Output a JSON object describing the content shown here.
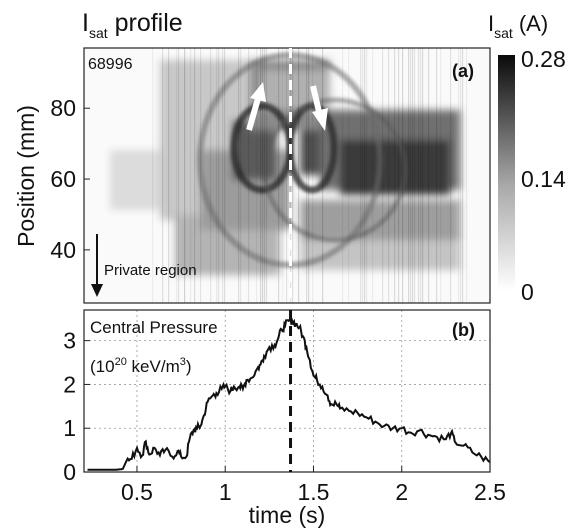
{
  "figure": {
    "title_main": "I",
    "title_sub": "sat",
    "title_rest": " profile"
  },
  "colorbar": {
    "label_main": "I",
    "label_sub": "sat",
    "label_unit": "(A)",
    "ticks": [
      "0.28",
      "0.14",
      "0"
    ],
    "colormap": "white-to-black grayscale"
  },
  "chart_data": [
    {
      "type": "heatmap",
      "panel": "(a)",
      "annotation_shot": "68996",
      "annotation_region": "Private region",
      "xlim": [
        0.2,
        2.5
      ],
      "ylim": [
        25,
        97
      ],
      "ylabel": "Position (mm)",
      "ytick_labels": [
        "40",
        "60",
        "80"
      ],
      "yticks": [
        40,
        60,
        80
      ],
      "zlim": [
        0,
        0.28
      ],
      "colorbar_ticks": [
        0,
        0.14,
        0.28
      ],
      "marker_time": 1.37,
      "arrows": [
        "up-left at ~1.2 s",
        "down-right at ~1.5 s"
      ]
    },
    {
      "type": "line",
      "panel": "(b)",
      "title": "Central Pressure",
      "unit_line": {
        "prefix": "(10",
        "exp": "20",
        "mid": " keV/m",
        "exp2": "3",
        "suffix": ")"
      },
      "xlabel": "time (s)",
      "xlim": [
        0.2,
        2.5
      ],
      "ylim": [
        0,
        3.7
      ],
      "xticks": [
        0.5,
        1,
        1.5,
        2,
        2.5
      ],
      "xtick_labels": [
        "0.5",
        "1",
        "1.5",
        "2",
        "2.5"
      ],
      "yticks": [
        0,
        1,
        2,
        3
      ],
      "ytick_labels": [
        "0",
        "1",
        "2",
        "3"
      ],
      "grid": true,
      "marker_time": 1.37,
      "x": [
        0.22,
        0.3,
        0.38,
        0.42,
        0.44,
        0.47,
        0.5,
        0.53,
        0.55,
        0.57,
        0.6,
        0.63,
        0.66,
        0.7,
        0.73,
        0.75,
        0.78,
        0.8,
        0.82,
        0.84,
        0.86,
        0.88,
        0.9,
        0.93,
        0.95,
        0.98,
        1.0,
        1.03,
        1.05,
        1.08,
        1.1,
        1.12,
        1.15,
        1.18,
        1.2,
        1.22,
        1.25,
        1.28,
        1.3,
        1.32,
        1.34,
        1.36,
        1.38,
        1.4,
        1.42,
        1.44,
        1.46,
        1.48,
        1.5,
        1.52,
        1.55,
        1.58,
        1.6,
        1.63,
        1.65,
        1.7,
        1.75,
        1.8,
        1.85,
        1.9,
        1.95,
        2.0,
        2.05,
        2.1,
        2.15,
        2.2,
        2.25,
        2.28,
        2.3,
        2.35,
        2.4,
        2.45,
        2.5
      ],
      "y": [
        0.05,
        0.05,
        0.05,
        0.07,
        0.25,
        0.3,
        0.55,
        0.38,
        0.7,
        0.4,
        0.55,
        0.38,
        0.5,
        0.35,
        0.48,
        0.35,
        0.35,
        0.78,
        0.95,
        1.0,
        1.05,
        1.3,
        1.6,
        1.75,
        1.8,
        1.9,
        1.95,
        1.85,
        1.95,
        1.95,
        1.9,
        2.1,
        2.15,
        2.35,
        2.45,
        2.65,
        2.85,
        2.9,
        3.05,
        3.25,
        3.35,
        3.45,
        3.45,
        3.38,
        3.3,
        3.1,
        2.85,
        2.55,
        2.2,
        2.1,
        1.95,
        1.75,
        1.55,
        1.55,
        1.45,
        1.4,
        1.35,
        1.25,
        1.15,
        1.05,
        1.0,
        1.0,
        0.9,
        0.95,
        0.85,
        0.8,
        0.75,
        0.9,
        0.7,
        0.6,
        0.45,
        0.35,
        0.22
      ]
    }
  ]
}
